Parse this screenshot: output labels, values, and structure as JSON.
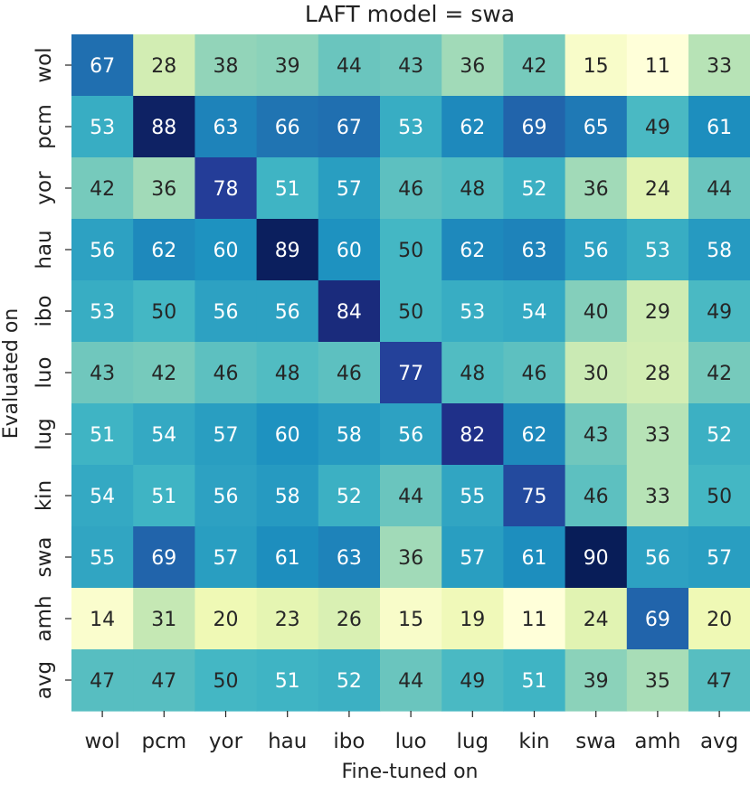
{
  "chart_data": {
    "type": "heatmap",
    "title": "LAFT model = swa",
    "xlabel": "Fine-tuned on",
    "ylabel": "Evaluated on",
    "x_categories": [
      "wol",
      "pcm",
      "yor",
      "hau",
      "ibo",
      "luo",
      "lug",
      "kin",
      "swa",
      "amh",
      "avg"
    ],
    "y_categories": [
      "wol",
      "pcm",
      "yor",
      "hau",
      "ibo",
      "luo",
      "lug",
      "kin",
      "swa",
      "amh",
      "avg"
    ],
    "colormap": "YlGnBu",
    "values": [
      [
        67,
        28,
        38,
        39,
        44,
        43,
        36,
        42,
        15,
        11,
        33
      ],
      [
        53,
        88,
        63,
        66,
        67,
        53,
        62,
        69,
        65,
        49,
        61
      ],
      [
        42,
        36,
        78,
        51,
        57,
        46,
        48,
        52,
        36,
        24,
        44
      ],
      [
        56,
        62,
        60,
        89,
        60,
        50,
        62,
        63,
        56,
        53,
        58
      ],
      [
        53,
        50,
        56,
        56,
        84,
        50,
        53,
        54,
        40,
        29,
        49
      ],
      [
        43,
        42,
        46,
        48,
        46,
        77,
        48,
        46,
        30,
        28,
        42
      ],
      [
        51,
        54,
        57,
        60,
        58,
        56,
        82,
        62,
        43,
        33,
        52
      ],
      [
        54,
        51,
        56,
        58,
        52,
        44,
        55,
        75,
        46,
        33,
        50
      ],
      [
        55,
        69,
        57,
        61,
        63,
        36,
        57,
        61,
        90,
        56,
        57
      ],
      [
        14,
        31,
        20,
        23,
        26,
        15,
        19,
        11,
        24,
        69,
        20
      ],
      [
        47,
        47,
        50,
        51,
        52,
        44,
        49,
        51,
        39,
        35,
        47
      ]
    ]
  }
}
